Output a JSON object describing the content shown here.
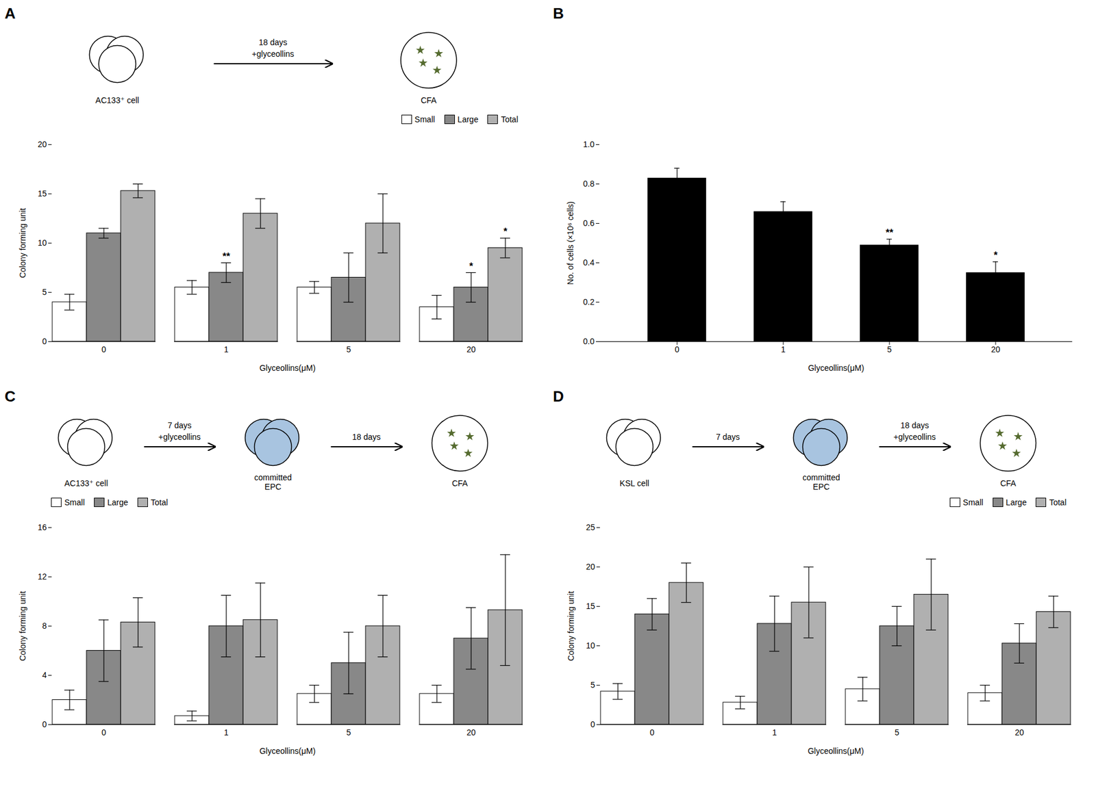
{
  "chart_data": [
    {
      "type": "bar",
      "title": "A",
      "diagram": [
        {
          "type": "cells",
          "label": "AC133⁺ cell",
          "color": "#ffffff"
        },
        {
          "type": "arrow",
          "texts": [
            "18 days",
            "+glyceollins"
          ]
        },
        {
          "type": "dish",
          "label": "CFA"
        }
      ],
      "categories": [
        "0",
        "1",
        "5",
        "20"
      ],
      "series": [
        {
          "name": "Small",
          "color": "#ffffff",
          "values": [
            4.0,
            5.5,
            5.5,
            3.5
          ],
          "errors": [
            0.8,
            0.7,
            0.6,
            1.2
          ]
        },
        {
          "name": "Large",
          "color": "#888888",
          "values": [
            11.0,
            7.0,
            6.5,
            5.5
          ],
          "errors": [
            0.5,
            1.0,
            2.5,
            1.5
          ]
        },
        {
          "name": "Total",
          "color": "#b0b0b0",
          "values": [
            15.3,
            13.0,
            12.0,
            9.5
          ],
          "errors": [
            0.7,
            1.5,
            3.0,
            1.0
          ]
        }
      ],
      "annotations": [
        {
          "text": "**",
          "category": "1",
          "series": "Large",
          "color": "#000000"
        },
        {
          "text": "*",
          "category": "20",
          "series": "Large",
          "color": "#000000"
        },
        {
          "text": "*",
          "category": "20",
          "series": "Total",
          "color": "#000000"
        }
      ],
      "xlabel": "Glyceollins(μM)",
      "ylabel": "Colony forming unit",
      "ylim": [
        0,
        20
      ],
      "yticks": [
        0,
        5,
        10,
        15,
        20
      ],
      "legend": "upper right"
    },
    {
      "type": "bar",
      "title": "B",
      "categories": [
        "0",
        "1",
        "5",
        "20"
      ],
      "values": [
        0.83,
        0.66,
        0.49,
        0.35
      ],
      "errors": [
        0.05,
        0.05,
        0.03,
        0.055
      ],
      "color": "#000000",
      "annotations": [
        {
          "text": "**",
          "category": "5",
          "color": "#000000"
        },
        {
          "text": "*",
          "category": "20",
          "color": "#000000"
        }
      ],
      "xlabel": "Glyceollins(μM)",
      "ylabel": "No. of cells (×10⁶ cells)",
      "ylim": [
        0.0,
        1.0
      ],
      "yticks": [
        {
          "value": 0.0,
          "label": "0.0"
        },
        0.2,
        0.4,
        0.6,
        0.8,
        {
          "value": 1.0,
          "label": "1.0"
        }
      ]
    },
    {
      "type": "bar",
      "title": "C",
      "diagram": [
        {
          "type": "cells",
          "label": "AC133⁺ cell",
          "color": "#ffffff"
        },
        {
          "type": "arrow",
          "texts": [
            "7 days",
            "+glyceollins"
          ]
        },
        {
          "type": "cells",
          "label": "committed\nEPC",
          "color": "#a8c4e0"
        },
        {
          "type": "arrow",
          "texts": [
            "18 days"
          ]
        },
        {
          "type": "dish",
          "label": "CFA"
        }
      ],
      "categories": [
        "0",
        "1",
        "5",
        "20"
      ],
      "series": [
        {
          "name": "Small",
          "color": "#ffffff",
          "values": [
            2.0,
            0.7,
            2.5,
            2.5
          ],
          "errors": [
            0.8,
            0.4,
            0.7,
            0.7
          ]
        },
        {
          "name": "Large",
          "color": "#888888",
          "values": [
            6.0,
            8.0,
            5.0,
            7.0
          ],
          "errors": [
            2.5,
            2.5,
            2.5,
            2.5
          ]
        },
        {
          "name": "Total",
          "color": "#b0b0b0",
          "values": [
            8.3,
            8.5,
            8.0,
            9.3
          ],
          "errors": [
            2.0,
            3.0,
            2.5,
            4.5
          ]
        }
      ],
      "xlabel": "Glyceollins(μM)",
      "ylabel": "Colony forming unit",
      "ylim": [
        0,
        16
      ],
      "yticks": [
        0,
        4,
        8,
        12,
        16
      ],
      "legend": "upper left"
    },
    {
      "type": "bar",
      "title": "D",
      "diagram": [
        {
          "type": "cells",
          "label": "KSL cell",
          "color": "#ffffff"
        },
        {
          "type": "arrow",
          "texts": [
            "7 days"
          ]
        },
        {
          "type": "cells",
          "label": "committed\nEPC",
          "color": "#a8c4e0"
        },
        {
          "type": "arrow",
          "texts": [
            "18 days",
            "+glyceollins"
          ]
        },
        {
          "type": "dish",
          "label": "CFA"
        }
      ],
      "categories": [
        "0",
        "1",
        "5",
        "20"
      ],
      "series": [
        {
          "name": "Small",
          "color": "#ffffff",
          "values": [
            4.2,
            2.8,
            4.5,
            4.0
          ],
          "errors": [
            1.0,
            0.8,
            1.5,
            1.0
          ]
        },
        {
          "name": "Large",
          "color": "#888888",
          "values": [
            14.0,
            12.8,
            12.5,
            10.3
          ],
          "errors": [
            2.0,
            3.5,
            2.5,
            2.5
          ]
        },
        {
          "name": "Total",
          "color": "#b0b0b0",
          "values": [
            18.0,
            15.5,
            16.5,
            14.3
          ],
          "errors": [
            2.5,
            4.5,
            4.5,
            2.0
          ]
        }
      ],
      "xlabel": "Glyceollins(μM)",
      "ylabel": "Colony forming unit",
      "ylim": [
        0,
        25
      ],
      "yticks": [
        0,
        5,
        10,
        15,
        20,
        25
      ],
      "legend": "upper right"
    }
  ]
}
